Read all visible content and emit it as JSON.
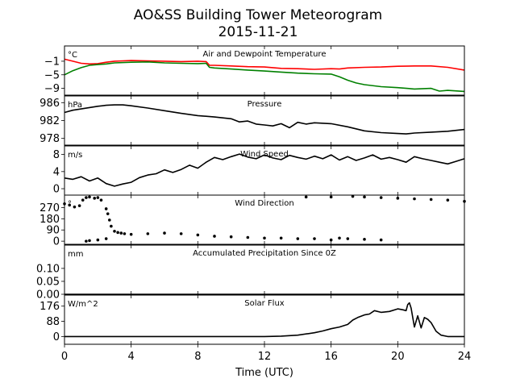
{
  "title_line1": "AO&SS Building Tower Meteorogram",
  "title_line2": "2015-11-21",
  "xlabel": "Time (UTC)",
  "colors": {
    "air_temp": "#ff0000",
    "dewpoint": "#008000",
    "line": "#000000"
  },
  "chart_data": [
    {
      "type": "line",
      "title": "Air and Dewpoint Temperature",
      "unit_label": "°C",
      "ylim": [
        -11,
        3.5
      ],
      "yticks": [
        -1,
        -5,
        -9
      ],
      "ytick_labels": [
        "−1",
        "−5",
        "−9"
      ],
      "series": [
        {
          "color": "air_temp",
          "x": [
            0,
            0.5,
            1,
            1.5,
            2,
            2.5,
            3,
            3.5,
            4,
            5,
            6,
            7,
            8,
            8.5,
            8.7,
            9,
            10,
            11,
            12,
            13,
            14,
            15,
            16,
            16.5,
            17,
            18,
            19,
            20,
            21,
            22,
            23,
            24
          ],
          "y": [
            -0.4,
            -1.0,
            -1.6,
            -1.8,
            -1.7,
            -1.3,
            -1.0,
            -0.9,
            -0.8,
            -0.9,
            -1.0,
            -1.1,
            -1.0,
            -1.1,
            -2.2,
            -2.2,
            -2.4,
            -2.6,
            -2.7,
            -3.1,
            -3.2,
            -3.4,
            -3.2,
            -3.3,
            -3.0,
            -2.8,
            -2.7,
            -2.5,
            -2.4,
            -2.4,
            -2.8,
            -3.6
          ]
        },
        {
          "color": "dewpoint",
          "x": [
            0,
            0.5,
            1,
            1.5,
            2,
            2.5,
            3,
            4,
            5,
            6,
            7,
            8,
            8.5,
            8.7,
            9,
            10,
            11,
            12,
            13,
            14,
            15,
            16,
            16.5,
            17,
            17.5,
            18,
            19,
            20,
            21,
            22,
            22.5,
            23,
            24
          ],
          "y": [
            -5.0,
            -3.8,
            -2.9,
            -2.2,
            -2.0,
            -1.8,
            -1.5,
            -1.3,
            -1.2,
            -1.5,
            -1.6,
            -1.7,
            -1.6,
            -2.8,
            -3.0,
            -3.3,
            -3.6,
            -3.9,
            -4.2,
            -4.5,
            -4.7,
            -4.8,
            -5.6,
            -6.6,
            -7.4,
            -7.9,
            -8.5,
            -8.8,
            -9.2,
            -9.0,
            -9.8,
            -9.6,
            -9.9
          ]
        }
      ]
    },
    {
      "type": "line",
      "title": "Pressure",
      "unit_label": "hPa",
      "ylim": [
        976.5,
        987.5
      ],
      "yticks": [
        986,
        982,
        978
      ],
      "ytick_labels": [
        "986",
        "982",
        "978"
      ],
      "series": [
        {
          "color": "line",
          "x": [
            0,
            0.5,
            1,
            1.5,
            2,
            2.5,
            3,
            3.5,
            4,
            5,
            6,
            7,
            8,
            9,
            10,
            10.5,
            11,
            11.5,
            12,
            12.5,
            13,
            13.5,
            14,
            14.5,
            15,
            16,
            17,
            18,
            19,
            20,
            20.5,
            21,
            22,
            23,
            24
          ],
          "y": [
            983.8,
            984.3,
            984.6,
            984.9,
            985.2,
            985.4,
            985.5,
            985.5,
            985.3,
            984.8,
            984.2,
            983.6,
            983.1,
            982.8,
            982.4,
            981.7,
            981.9,
            981.2,
            981.0,
            980.8,
            981.3,
            980.4,
            981.6,
            981.2,
            981.5,
            981.3,
            980.6,
            979.7,
            979.3,
            979.1,
            979.0,
            979.2,
            979.4,
            979.6,
            980.0
          ]
        }
      ]
    },
    {
      "type": "line",
      "title": "Wind Speed",
      "unit_label": "m/s",
      "ylim": [
        -1.5,
        10
      ],
      "yticks": [
        8,
        4,
        0
      ],
      "ytick_labels": [
        "8",
        "4",
        "0"
      ],
      "series": [
        {
          "color": "line",
          "x": [
            0,
            0.5,
            1,
            1.5,
            2,
            2.5,
            3,
            3.5,
            4,
            4.5,
            5,
            5.5,
            6,
            6.5,
            7,
            7.5,
            8,
            8.5,
            9,
            9.5,
            10,
            10.5,
            11,
            11.5,
            12,
            12.5,
            13,
            13.5,
            14,
            14.5,
            15,
            15.5,
            16,
            16.5,
            17,
            17.5,
            18,
            18.5,
            19,
            19.5,
            20,
            20.5,
            21,
            21.5,
            22,
            22.5,
            23,
            23.5,
            24
          ],
          "y": [
            2.5,
            2.2,
            2.8,
            1.8,
            2.5,
            1.2,
            0.6,
            1.1,
            1.5,
            2.6,
            3.2,
            3.5,
            4.4,
            3.8,
            4.5,
            5.5,
            4.8,
            6.2,
            7.3,
            6.8,
            7.5,
            8.1,
            7.4,
            7.0,
            7.9,
            7.2,
            6.8,
            7.8,
            7.3,
            6.9,
            7.6,
            7.0,
            7.9,
            6.7,
            7.5,
            6.6,
            7.2,
            7.9,
            6.9,
            7.3,
            6.8,
            6.2,
            7.5,
            7.0,
            6.6,
            6.2,
            5.8,
            6.4,
            7.0
          ]
        }
      ]
    },
    {
      "type": "scatter",
      "title": "Wind Direction",
      "unit_label": "°",
      "ylim": [
        -25,
        370
      ],
      "yticks": [
        270,
        180,
        90,
        0
      ],
      "ytick_labels": [
        "270",
        "180",
        "90",
        "0"
      ],
      "series": [
        {
          "color": "line",
          "x": [
            0,
            0.3,
            0.6,
            0.9,
            1.1,
            1.3,
            1.5,
            1.8,
            2.0,
            2.2,
            2.5,
            2.6,
            2.7,
            2.8,
            3.0,
            3.2,
            3.4,
            3.6,
            4,
            5,
            6,
            7,
            8,
            9,
            10,
            11,
            12,
            13,
            14,
            15,
            16,
            16.5,
            17,
            18,
            19,
            2.0,
            2.5,
            1.3,
            1.5,
            14.5,
            16.0,
            17.3,
            18.0,
            19,
            20,
            21,
            22,
            23,
            24
          ],
          "y": [
            300,
            290,
            275,
            285,
            330,
            350,
            355,
            345,
            350,
            330,
            260,
            220,
            170,
            120,
            80,
            70,
            65,
            60,
            55,
            60,
            65,
            60,
            50,
            40,
            35,
            30,
            25,
            25,
            20,
            20,
            10,
            25,
            20,
            15,
            10,
            10,
            20,
            0,
            5,
            355,
            355,
            360,
            355,
            350,
            345,
            340,
            335,
            330,
            320
          ]
        }
      ]
    },
    {
      "type": "line",
      "title": "Accumulated Precipitation Since 0Z",
      "unit_label": "mm",
      "ylim": [
        0,
        0.19
      ],
      "yticks": [
        0.1,
        0.05,
        0.0
      ],
      "ytick_labels": [
        "0.10",
        "0.05",
        "0.00"
      ],
      "series": [
        {
          "color": "line",
          "x": [
            0,
            24
          ],
          "y": [
            0,
            0
          ]
        }
      ]
    },
    {
      "type": "line",
      "title": "Solar Flux",
      "unit_label": "W/m^2",
      "ylim": [
        -45,
        240
      ],
      "yticks": [
        176,
        88,
        0
      ],
      "ytick_labels": [
        "176",
        "88",
        "0"
      ],
      "series": [
        {
          "color": "line",
          "x": [
            0,
            12,
            13,
            14,
            15,
            15.5,
            16,
            16.5,
            17,
            17.3,
            17.6,
            18,
            18.3,
            18.6,
            19,
            19.5,
            20,
            20.3,
            20.5,
            20.6,
            20.7,
            20.8,
            21,
            21.2,
            21.4,
            21.6,
            21.8,
            22,
            22.3,
            22.6,
            23,
            23.5,
            24
          ],
          "y": [
            0,
            0,
            2,
            8,
            22,
            32,
            45,
            55,
            70,
            95,
            110,
            125,
            130,
            150,
            140,
            145,
            160,
            155,
            150,
            185,
            195,
            165,
            55,
            120,
            50,
            110,
            100,
            80,
            30,
            8,
            0,
            0,
            0
          ]
        }
      ]
    }
  ],
  "x_axis": {
    "range": [
      0,
      24
    ],
    "ticks": [
      0,
      4,
      8,
      12,
      16,
      20,
      24
    ],
    "tick_labels": [
      "0",
      "4",
      "8",
      "12",
      "16",
      "20",
      "24"
    ]
  }
}
